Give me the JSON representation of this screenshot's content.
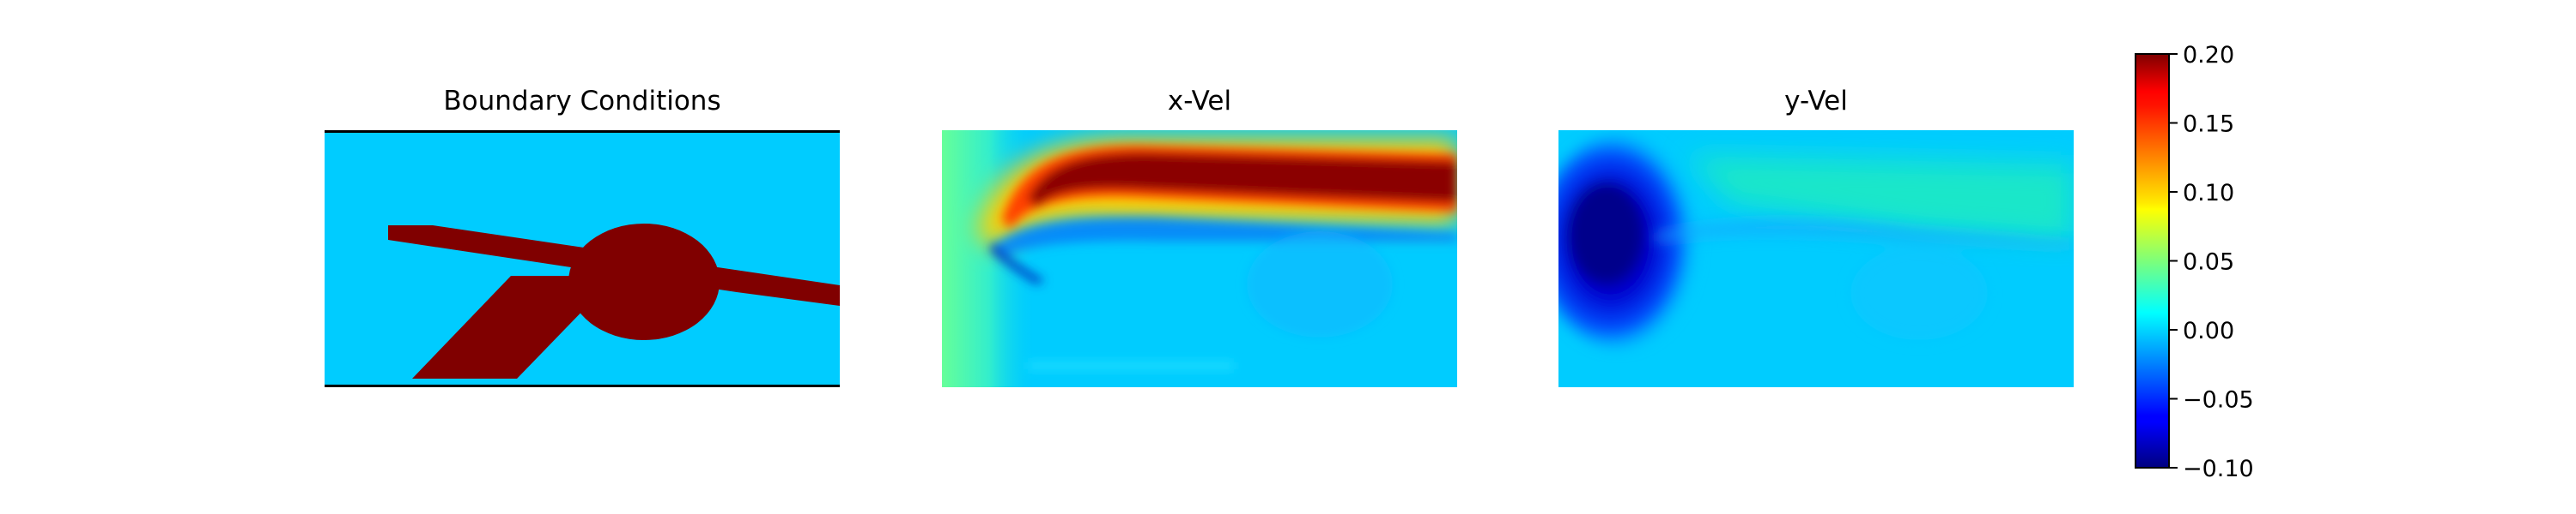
{
  "chart_data": [
    {
      "type": "heatmap",
      "title": "Boundary Conditions",
      "description_levels": {
        "fluid": 0.0,
        "solid": 0.2
      },
      "colormap": "jet"
    },
    {
      "type": "heatmap",
      "title": "x-Vel",
      "colormap": "jet"
    },
    {
      "type": "heatmap",
      "title": "y-Vel",
      "colormap": "jet"
    }
  ],
  "colorbar": {
    "colormap": "jet",
    "vmin": -0.1,
    "vmax": 0.2,
    "ticks": [
      {
        "value": 0.2,
        "label": "0.20"
      },
      {
        "value": 0.15,
        "label": "0.15"
      },
      {
        "value": 0.1,
        "label": "0.10"
      },
      {
        "value": 0.05,
        "label": "0.05"
      },
      {
        "value": 0.0,
        "label": "0.00"
      },
      {
        "value": -0.05,
        "label": "−0.05"
      },
      {
        "value": -0.1,
        "label": "−0.10"
      }
    ]
  },
  "colors": {
    "fluid": "#00ccff",
    "solid": "#800000"
  }
}
